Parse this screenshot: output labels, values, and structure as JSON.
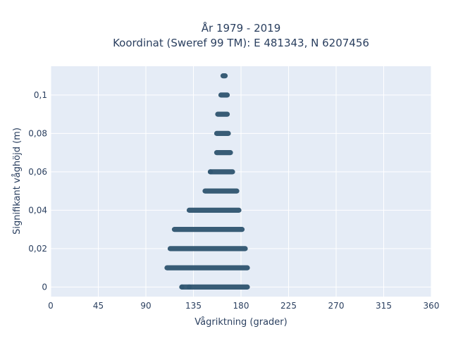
{
  "chart_data": {
    "type": "scatter",
    "title": [
      "År 1979 - 2019",
      "Koordinat (Sweref 99 TM): E 481343, N 6207456"
    ],
    "xlabel": "Vågriktning (grader)",
    "ylabel": "Signifikant våghöjd (m)",
    "xlim": [
      0,
      360
    ],
    "ylim": [
      -0.005,
      0.115
    ],
    "x_ticks": [
      0,
      45,
      90,
      135,
      180,
      225,
      270,
      315,
      360
    ],
    "x_tick_labels": [
      "0",
      "45",
      "90",
      "135",
      "180",
      "225",
      "270",
      "315",
      "360"
    ],
    "y_ticks": [
      0,
      0.02,
      0.04,
      0.06,
      0.08,
      0.1
    ],
    "y_tick_labels": [
      "0",
      "0,02",
      "0,04",
      "0,06",
      "0,08",
      "0,1"
    ],
    "grid": true,
    "marker_color": "#2f5570",
    "plot_background": "#e5ecf6",
    "bands": [
      {
        "y": 0.0,
        "x_min": 124,
        "x_max": 186
      },
      {
        "y": 0.01,
        "x_min": 110,
        "x_max": 186
      },
      {
        "y": 0.02,
        "x_min": 113,
        "x_max": 184
      },
      {
        "y": 0.03,
        "x_min": 117,
        "x_max": 181
      },
      {
        "y": 0.04,
        "x_min": 131,
        "x_max": 178
      },
      {
        "y": 0.05,
        "x_min": 146,
        "x_max": 176
      },
      {
        "y": 0.06,
        "x_min": 151,
        "x_max": 172
      },
      {
        "y": 0.07,
        "x_min": 157,
        "x_max": 170
      },
      {
        "y": 0.08,
        "x_min": 157,
        "x_max": 168
      },
      {
        "y": 0.09,
        "x_min": 158,
        "x_max": 167
      },
      {
        "y": 0.1,
        "x_min": 161,
        "x_max": 167
      },
      {
        "y": 0.11,
        "x_min": 163,
        "x_max": 165
      }
    ],
    "outliers": [
      {
        "x": 124,
        "y": 0.0
      },
      {
        "x": 131,
        "y": 0.0
      },
      {
        "x": 151,
        "y": 0.06
      }
    ]
  }
}
